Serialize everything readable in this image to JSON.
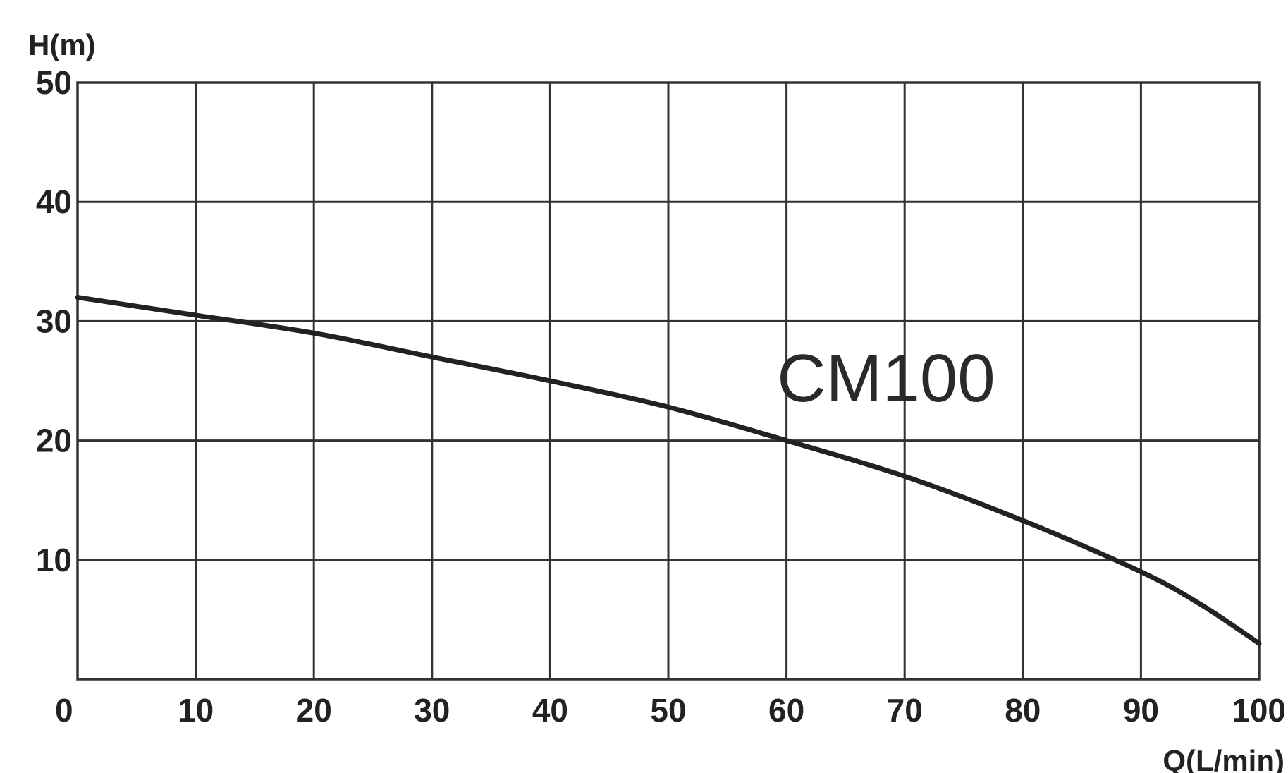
{
  "chart_data": {
    "type": "line",
    "xlabel": "Q(L/min)",
    "ylabel": "H(m)",
    "xlim": [
      0,
      100
    ],
    "ylim": [
      0,
      50
    ],
    "xticks": [
      0,
      10,
      20,
      30,
      40,
      50,
      60,
      70,
      80,
      90,
      100
    ],
    "yticks": [
      10,
      20,
      30,
      40,
      50
    ],
    "grid": true,
    "colors": {
      "line": "#222222",
      "grid": "#333333",
      "text": "#222222"
    },
    "series": [
      {
        "name": "CM100",
        "x": [
          0,
          10,
          20,
          30,
          40,
          50,
          60,
          70,
          80,
          90,
          95,
          100
        ],
        "y": [
          32,
          30.5,
          29,
          27,
          25,
          22.8,
          20,
          17,
          13.3,
          9,
          6.3,
          3
        ]
      }
    ]
  }
}
